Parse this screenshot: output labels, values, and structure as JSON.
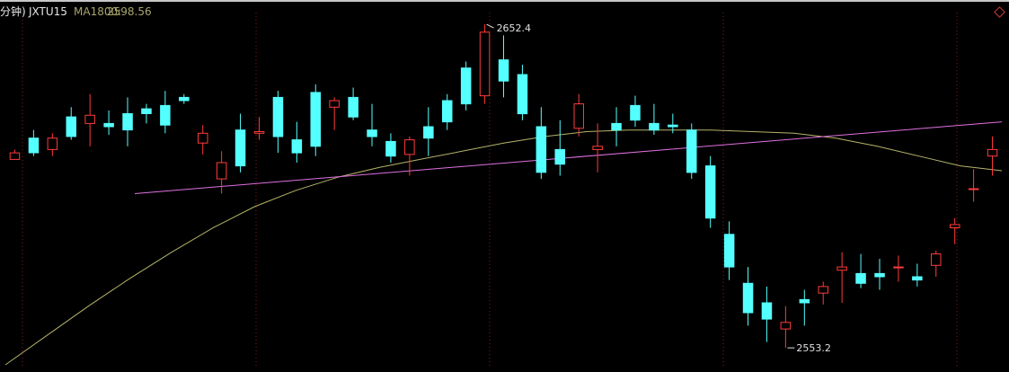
{
  "header": {
    "period_label": "分钟)",
    "symbol": "JXTU15",
    "ma_label": "MA1800:",
    "ma_value": "2598.56"
  },
  "annotations": {
    "high_label": "2652.4",
    "low_label": "2553.2"
  },
  "colors": {
    "background": "#000000",
    "up": "#ff3b3b",
    "down": "#54ffff",
    "ma_line": "#b5b36a",
    "trend_line": "#e070e0",
    "separator": "#8b1a1a",
    "annotation": "#e0e0e0"
  },
  "chart_data": {
    "type": "candlestick",
    "title": "",
    "symbol": "JXTU15",
    "indicators": [
      {
        "name": "MA1800",
        "value": 2598.56
      }
    ],
    "ylim": [
      2548,
      2656
    ],
    "annotations": [
      {
        "label": "2652.4",
        "value": 2652.4,
        "kind": "high"
      },
      {
        "label": "2553.2",
        "value": 2553.2,
        "kind": "low"
      }
    ],
    "trend_line": {
      "start": 2600.5,
      "end": 2622.5
    },
    "ma_series": [
      2548.0,
      2557.0,
      2566.0,
      2574.5,
      2582.5,
      2590.0,
      2596.5,
      2601.5,
      2605.5,
      2608.5,
      2611.0,
      2613.5,
      2616.0,
      2618.0,
      2619.5,
      2620.0,
      2620.0,
      2620.0,
      2619.5,
      2619.0,
      2617.5,
      2615.0,
      2612.0,
      2609.0,
      2607.5
    ],
    "series": [
      {
        "name": "",
        "values": [
          [
            2611.0,
            2614.0,
            2611.0,
            2613.0
          ],
          [
            2617.5,
            2620.0,
            2612.0,
            2613.0
          ],
          [
            2614.0,
            2619.0,
            2612.0,
            2617.5
          ],
          [
            2624.0,
            2627.0,
            2617.0,
            2618.0
          ],
          [
            2622.0,
            2631.0,
            2615.0,
            2624.5
          ],
          [
            2622.0,
            2626.0,
            2618.5,
            2621.0
          ],
          [
            2625.0,
            2630.0,
            2615.0,
            2620.0
          ],
          [
            2626.5,
            2628.0,
            2622.0,
            2625.0
          ],
          [
            2627.5,
            2632.0,
            2619.0,
            2621.5
          ],
          [
            2630.0,
            2631.0,
            2628.0,
            2629.0
          ],
          [
            2616.0,
            2621.5,
            2612.5,
            2619.0
          ],
          [
            2605.0,
            2613.5,
            2600.5,
            2610.0
          ],
          [
            2620.0,
            2625.0,
            2607.0,
            2609.0
          ],
          [
            2619.0,
            2624.0,
            2617.0,
            2619.5
          ],
          [
            2630.0,
            2632.0,
            2613.0,
            2618.0
          ],
          [
            2617.0,
            2622.5,
            2610.0,
            2613.0
          ],
          [
            2631.5,
            2634.0,
            2612.0,
            2615.0
          ],
          [
            2627.0,
            2630.0,
            2620.0,
            2629.0
          ],
          [
            2630.0,
            2633.0,
            2623.0,
            2624.0
          ],
          [
            2620.0,
            2628.0,
            2615.0,
            2618.0
          ],
          [
            2616.5,
            2619.0,
            2610.0,
            2612.0
          ],
          [
            2612.5,
            2618.0,
            2606.0,
            2617.0
          ],
          [
            2621.0,
            2627.0,
            2612.0,
            2617.5
          ],
          [
            2629.0,
            2631.0,
            2620.0,
            2622.5
          ],
          [
            2639.0,
            2641.0,
            2626.0,
            2628.0
          ],
          [
            2630.5,
            2652.4,
            2628.0,
            2650.0
          ],
          [
            2641.5,
            2649.0,
            2630.0,
            2635.0
          ],
          [
            2637.0,
            2640.0,
            2623.0,
            2625.0
          ],
          [
            2621.0,
            2627.0,
            2605.0,
            2607.0
          ],
          [
            2614.0,
            2623.0,
            2606.0,
            2609.5
          ],
          [
            2620.5,
            2631.0,
            2618.0,
            2628.0
          ],
          [
            2614.0,
            2622.0,
            2607.0,
            2615.0
          ],
          [
            2622.0,
            2627.0,
            2615.0,
            2620.0
          ],
          [
            2627.5,
            2630.5,
            2621.0,
            2623.0
          ],
          [
            2622.0,
            2628.0,
            2618.5,
            2620.0
          ],
          [
            2621.5,
            2625.0,
            2619.0,
            2621.0
          ],
          [
            2620.0,
            2622.0,
            2605.0,
            2607.0
          ],
          [
            2609.0,
            2612.0,
            2590.0,
            2593.0
          ],
          [
            2588.0,
            2592.0,
            2574.0,
            2578.0
          ],
          [
            2573.0,
            2578.0,
            2560.0,
            2564.0
          ],
          [
            2567.0,
            2572.0,
            2555.0,
            2562.0
          ],
          [
            2559.0,
            2566.0,
            2553.2,
            2561.0
          ],
          [
            2568.0,
            2571.0,
            2560.0,
            2567.0
          ],
          [
            2570.0,
            2573.5,
            2566.5,
            2572.0
          ],
          [
            2577.0,
            2582.5,
            2567.0,
            2578.0
          ],
          [
            2576.0,
            2582.0,
            2571.5,
            2573.0
          ],
          [
            2576.0,
            2580.5,
            2571.0,
            2575.0
          ],
          [
            2578.0,
            2581.5,
            2573.5,
            2578.0
          ],
          [
            2575.0,
            2579.0,
            2572.0,
            2574.0
          ],
          [
            2578.5,
            2583.0,
            2575.0,
            2582.0
          ],
          [
            2590.0,
            2593.0,
            2585.0,
            2591.0
          ],
          [
            2602.0,
            2608.0,
            2598.0,
            2602.0
          ],
          [
            2612.0,
            2618.0,
            2606.0,
            2614.0
          ]
        ]
      }
    ]
  }
}
